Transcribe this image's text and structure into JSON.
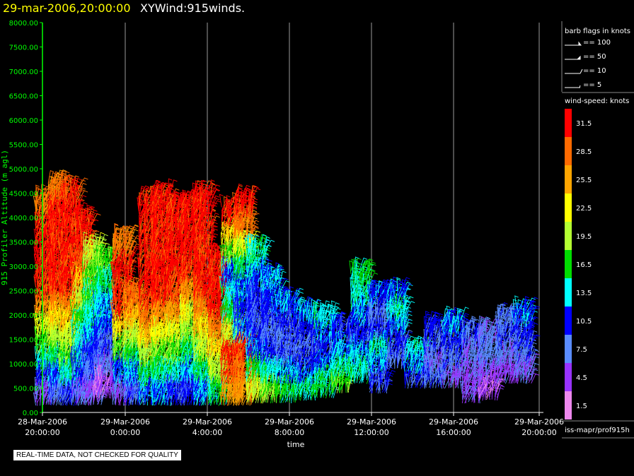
{
  "title": {
    "datetime": "29-mar-2006,20:00:00",
    "variable": "XYWind:915winds."
  },
  "footer": {
    "qc_notice": "REAL-TIME DATA, NOT CHECKED FOR QUALITY"
  },
  "legend": {
    "barb_title": "barb flags in knots",
    "barbs": [
      "== 100",
      "== 50",
      "== 10",
      "== 5"
    ],
    "speed_title": "wind-speed: knots",
    "source": "iss-mapr/prof915h"
  },
  "chart_data": {
    "type": "scatter",
    "title": "29-mar-2006,20:00:00  XYWind:915winds.",
    "xlabel": "time",
    "ylabel": "915 Profiler Altitude (m agl)",
    "ylim": [
      0,
      8000
    ],
    "yticks": [
      "0.00",
      "500.00",
      "1000.00",
      "1500.00",
      "2000.00",
      "2500.00",
      "3000.00",
      "3500.00",
      "4000.00",
      "4500.00",
      "5000.00",
      "5500.00",
      "6000.00",
      "6500.00",
      "7000.00",
      "7500.00",
      "8000.00"
    ],
    "xticks": [
      {
        "date": "28-Mar-2006",
        "time": "20:00:00"
      },
      {
        "date": "29-Mar-2006",
        "time": "0:00:00"
      },
      {
        "date": "29-Mar-2006",
        "time": "4:00:00"
      },
      {
        "date": "29-Mar-2006",
        "time": "8:00:00"
      },
      {
        "date": "29-Mar-2006",
        "time": "12:00:00"
      },
      {
        "date": "29-Mar-2006",
        "time": "16:00:00"
      },
      {
        "date": "29-Mar-2006",
        "time": "20:00:00"
      }
    ],
    "xlim_hours": [
      -4,
      20
    ],
    "grid": "vertical",
    "colorbar": {
      "unit": "knots",
      "bins": [
        {
          "label": "31.5",
          "color": "#ff0000"
        },
        {
          "label": "28.5",
          "color": "#ff6a00"
        },
        {
          "label": "25.5",
          "color": "#ffa500"
        },
        {
          "label": "22.5",
          "color": "#ffff00"
        },
        {
          "label": "19.5",
          "color": "#b4ff32"
        },
        {
          "label": "16.5",
          "color": "#00dd00"
        },
        {
          "label": "13.5",
          "color": "#00ffff"
        },
        {
          "label": "10.5",
          "color": "#0000ff"
        },
        {
          "label": "7.5",
          "color": "#5a8cff"
        },
        {
          "label": "4.5",
          "color": "#9933ff"
        },
        {
          "label": "1.5",
          "color": "#ee88ee"
        }
      ]
    },
    "profiles": [
      {
        "t": -3.9,
        "top": 4400,
        "bottom": 150,
        "speed": [
          6,
          10,
          14,
          18,
          22,
          26,
          30,
          31,
          31,
          31,
          30,
          28
        ]
      },
      {
        "t": -3.3,
        "top": 4700,
        "bottom": 150,
        "speed": [
          8,
          12,
          16,
          20,
          24,
          28,
          31,
          31,
          31,
          31,
          31,
          28
        ]
      },
      {
        "t": -2.7,
        "top": 4600,
        "bottom": 150,
        "speed": [
          10,
          14,
          17,
          20,
          24,
          28,
          31,
          31,
          31,
          31,
          31,
          30
        ]
      },
      {
        "t": -2.1,
        "top": 4000,
        "bottom": 150,
        "speed": [
          7,
          10,
          12,
          14,
          16,
          20,
          25,
          30,
          31,
          31
        ]
      },
      {
        "t": -1.6,
        "top": 3400,
        "bottom": 150,
        "speed": [
          5,
          8,
          10,
          12,
          14,
          16,
          18,
          20
        ]
      },
      {
        "t": -1.1,
        "top": 3200,
        "bottom": 300,
        "speed": [
          4,
          7,
          9,
          11,
          13,
          15,
          17
        ]
      },
      {
        "t": -0.2,
        "top": 3600,
        "bottom": 150,
        "speed": [
          6,
          12,
          18,
          24,
          30,
          31,
          31,
          28
        ]
      },
      {
        "t": 0.4,
        "top": 2500,
        "bottom": 150,
        "speed": [
          8,
          12,
          16,
          20,
          24,
          28
        ]
      },
      {
        "t": 1.1,
        "top": 4400,
        "bottom": 150,
        "speed": [
          12,
          16,
          20,
          24,
          28,
          31,
          31,
          31,
          31,
          31,
          31
        ]
      },
      {
        "t": 1.7,
        "top": 4500,
        "bottom": 150,
        "speed": [
          12,
          15,
          18,
          22,
          26,
          30,
          31,
          31,
          31,
          31,
          31
        ]
      },
      {
        "t": 2.4,
        "top": 4300,
        "bottom": 150,
        "speed": [
          10,
          14,
          18,
          22,
          26,
          30,
          31,
          31,
          31,
          31
        ]
      },
      {
        "t": 3.1,
        "top": 4300,
        "bottom": 150,
        "speed": [
          10,
          13,
          16,
          19,
          22,
          26,
          30,
          31,
          31,
          31
        ]
      },
      {
        "t": 3.7,
        "top": 4500,
        "bottom": 150,
        "speed": [
          12,
          16,
          20,
          24,
          28,
          31,
          31,
          31,
          31,
          31
        ]
      },
      {
        "t": 4.4,
        "top": 3200,
        "bottom": 150,
        "speed": [
          16,
          20,
          24,
          28,
          31,
          31,
          31
        ]
      },
      {
        "t": 5.1,
        "top": 4200,
        "bottom": 150,
        "speed": [
          26,
          30,
          31,
          20,
          16,
          14,
          12,
          18,
          24,
          31
        ]
      },
      {
        "t": 5.7,
        "top": 4400,
        "bottom": 150,
        "speed": [
          26,
          28,
          30,
          12,
          10,
          12,
          16,
          22,
          28,
          31
        ]
      },
      {
        "t": 6.3,
        "top": 3400,
        "bottom": 200,
        "speed": [
          20,
          16,
          12,
          10,
          9,
          10,
          12,
          14
        ]
      },
      {
        "t": 7.0,
        "top": 2800,
        "bottom": 200,
        "speed": [
          18,
          14,
          10,
          8,
          9,
          11,
          13
        ]
      },
      {
        "t": 7.8,
        "top": 2300,
        "bottom": 200,
        "speed": [
          16,
          12,
          9,
          8,
          10,
          12
        ]
      },
      {
        "t": 8.7,
        "top": 2100,
        "bottom": 250,
        "speed": [
          14,
          12,
          10,
          8,
          10,
          12
        ]
      },
      {
        "t": 9.6,
        "top": 2000,
        "bottom": 300,
        "speed": [
          16,
          14,
          12,
          10,
          12,
          14
        ]
      },
      {
        "t": 10.4,
        "top": 1800,
        "bottom": 400,
        "speed": [
          17,
          14,
          12,
          10
        ]
      },
      {
        "t": 11.3,
        "top": 2900,
        "bottom": 600,
        "speed": [
          14,
          12,
          10,
          12,
          14,
          16
        ]
      },
      {
        "t": 12.2,
        "top": 2500,
        "bottom": 400,
        "speed": [
          9,
          12,
          14,
          10,
          8,
          11
        ]
      },
      {
        "t": 13.1,
        "top": 2500,
        "bottom": 900,
        "speed": [
          8,
          10,
          12,
          14,
          12
        ]
      },
      {
        "t": 14.0,
        "top": 1300,
        "bottom": 500,
        "speed": [
          9,
          12,
          14
        ]
      },
      {
        "t": 14.9,
        "top": 1800,
        "bottom": 500,
        "speed": [
          8,
          7,
          9,
          10
        ]
      },
      {
        "t": 15.8,
        "top": 1900,
        "bottom": 500,
        "speed": [
          6,
          8,
          10,
          12
        ]
      },
      {
        "t": 16.7,
        "top": 1700,
        "bottom": 200,
        "speed": [
          5,
          6,
          7,
          8
        ]
      },
      {
        "t": 17.5,
        "top": 1700,
        "bottom": 250,
        "speed": [
          4,
          6,
          8,
          7
        ]
      },
      {
        "t": 18.4,
        "top": 2000,
        "bottom": 600,
        "speed": [
          5,
          7,
          9,
          8
        ]
      },
      {
        "t": 19.2,
        "top": 2100,
        "bottom": 600,
        "speed": [
          6,
          8,
          10,
          12
        ]
      }
    ]
  }
}
